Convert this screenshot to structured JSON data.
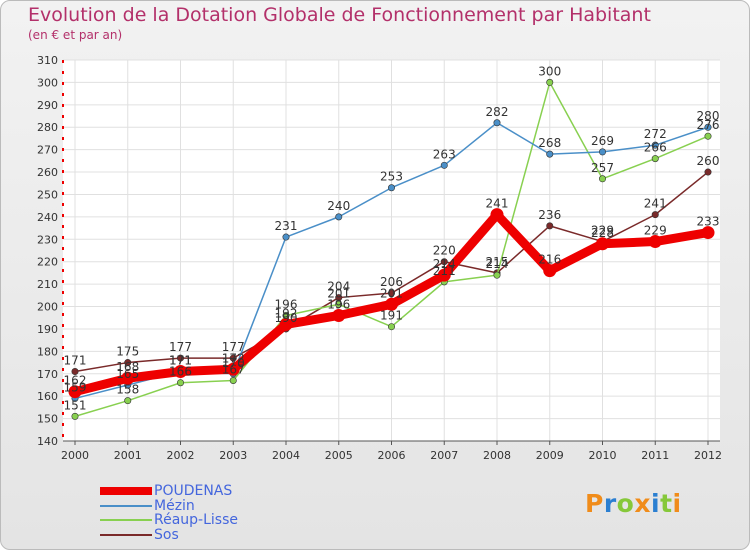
{
  "header": {
    "title": "Evolution de la Dotation Globale de Fonctionnement par Habitant",
    "subtitle": "(en € et par an)"
  },
  "logo": {
    "letters": [
      "P",
      "r",
      "o",
      "x",
      "i",
      "t",
      "i"
    ],
    "colors": [
      "#f08c1a",
      "#2b7fd1",
      "#86c83a",
      "#f08c1a",
      "#2b7fd1",
      "#86c83a",
      "#f08c1a"
    ]
  },
  "colors": {
    "title": "#b3306a",
    "grid": "#e0e0e0",
    "axis": "#555555",
    "tick_label": "#333333",
    "legend_text": "#4466dd"
  },
  "chart_data": {
    "type": "line",
    "title": "Evolution de la Dotation Globale de Fonctionnement par Habitant",
    "subtitle": "(en € et par an)",
    "xlabel": "",
    "ylabel": "",
    "x": [
      2000,
      2001,
      2002,
      2003,
      2004,
      2005,
      2006,
      2007,
      2008,
      2009,
      2010,
      2011,
      2012
    ],
    "ylim": [
      140,
      310
    ],
    "yticks": [
      140,
      150,
      160,
      170,
      180,
      190,
      200,
      210,
      220,
      230,
      240,
      250,
      260,
      270,
      280,
      290,
      300,
      310
    ],
    "grid": true,
    "legend_position": "bottom-left",
    "series": [
      {
        "name": "POUDENAS",
        "color": "#ee0000",
        "values": [
          162,
          168,
          171,
          172,
          192,
          196,
          201,
          214,
          241,
          216,
          228,
          229,
          233
        ],
        "labels": [
          "162",
          "168",
          "171",
          "172",
          "192",
          "196",
          "201",
          "214",
          "241",
          "216",
          "228",
          "229",
          "233"
        ]
      },
      {
        "name": "Mézin",
        "color": "#4a8fc8",
        "values": [
          159,
          165,
          171,
          170,
          231,
          240,
          253,
          263,
          282,
          268,
          269,
          272,
          280
        ],
        "labels": [
          "159",
          "165",
          "171",
          "170",
          "231",
          "240",
          "253",
          "263",
          "282",
          "268",
          "269",
          "272",
          "280"
        ]
      },
      {
        "name": "Réaup-Lisse",
        "color": "#88d050",
        "values": [
          151,
          158,
          166,
          167,
          196,
          201,
          191,
          211,
          214,
          300,
          257,
          266,
          276
        ],
        "labels": [
          "151",
          "158",
          "166",
          "167",
          "196",
          "201",
          "191",
          "211",
          "214",
          "300",
          "257",
          "266",
          "276"
        ]
      },
      {
        "name": "Sos",
        "color": "#7a2a2a",
        "values": [
          171,
          175,
          177,
          177,
          190,
          204,
          206,
          220,
          215,
          236,
          229,
          241,
          260
        ],
        "labels": [
          "171",
          "175",
          "177",
          "177",
          "190",
          "204",
          "206",
          "220",
          "215",
          "236",
          "229",
          "241",
          "260"
        ]
      }
    ]
  }
}
